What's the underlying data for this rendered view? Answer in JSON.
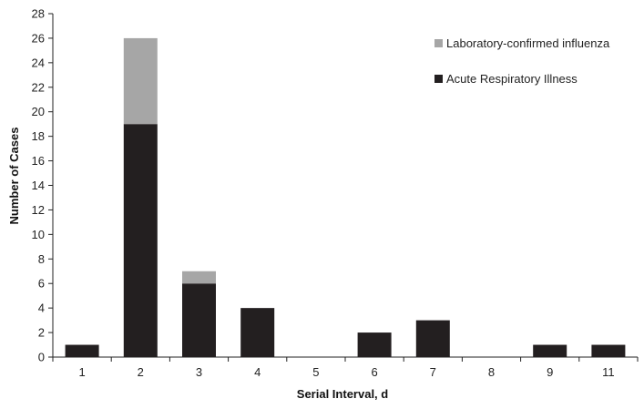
{
  "chart_data": {
    "type": "bar",
    "stacked": true,
    "categories": [
      "1",
      "2",
      "3",
      "4",
      "5",
      "6",
      "7",
      "8",
      "9",
      "11"
    ],
    "series": [
      {
        "name": "Acute Respiratory Illness",
        "values": [
          1,
          19,
          6,
          4,
          0,
          2,
          3,
          0,
          1,
          1
        ],
        "color": "#231f20"
      },
      {
        "name": "Laboratory-confirmed influenza",
        "values": [
          0,
          7,
          1,
          0,
          0,
          0,
          0,
          0,
          0,
          0
        ],
        "color": "#a6a6a6"
      }
    ],
    "xlabel": "Serial Interval, d",
    "ylabel": "Number of Cases",
    "ylim": [
      0,
      28
    ],
    "yticks": [
      0,
      2,
      4,
      6,
      8,
      10,
      12,
      14,
      16,
      18,
      20,
      22,
      24,
      26,
      28
    ],
    "grid": false,
    "legend": {
      "placement": "top-right",
      "entries": [
        "Laboratory-confirmed influenza",
        "Acute Respiratory Illness"
      ]
    }
  }
}
